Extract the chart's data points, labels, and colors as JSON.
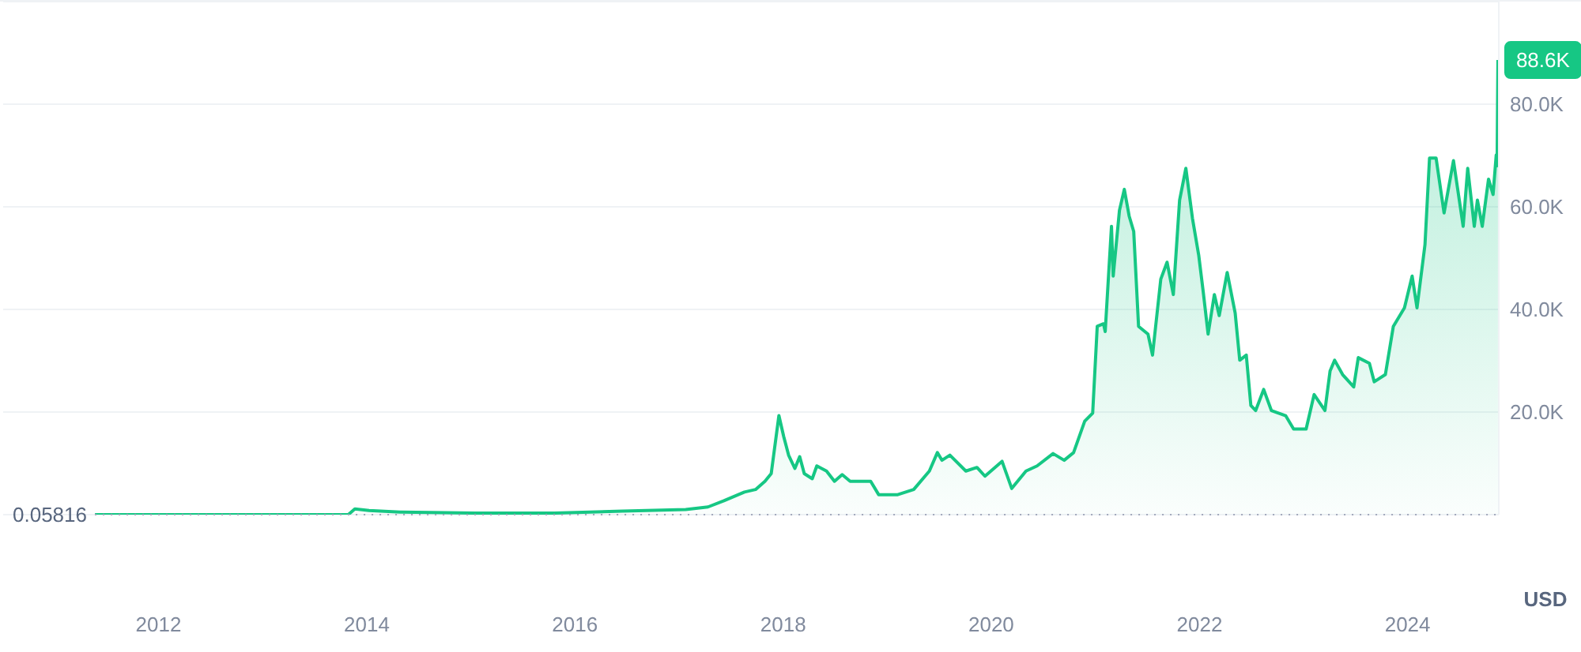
{
  "chart_data": {
    "type": "area",
    "ylabel": "USD",
    "x": [
      "2011-05-23",
      "2012-10-04",
      "2013-10-28",
      "2013-11-20",
      "2014-01-09",
      "2014-04-28",
      "2015-01-16",
      "2015-10-21",
      "2016-06-17",
      "2017-01-24",
      "2017-04-12",
      "2017-06-07",
      "2017-08-18",
      "2017-09-26",
      "2017-10-29",
      "2017-11-20",
      "2017-12-17",
      "2018-01-03",
      "2018-01-20",
      "2018-02-11",
      "2018-02-28",
      "2018-03-16",
      "2018-04-13",
      "2018-04-29",
      "2018-06-02",
      "2018-06-30",
      "2018-07-27",
      "2018-08-24",
      "2018-11-04",
      "2018-12-02",
      "2019-02-07",
      "2019-04-04",
      "2019-05-29",
      "2019-06-26",
      "2019-07-12",
      "2019-08-09",
      "2019-10-04",
      "2019-11-12",
      "2019-12-10",
      "2020-02-08",
      "2020-03-13",
      "2020-05-02",
      "2020-06-10",
      "2020-08-05",
      "2020-09-13",
      "2020-10-16",
      "2020-11-24",
      "2020-12-22",
      "2021-01-07",
      "2021-01-29",
      "2021-02-04",
      "2021-02-26",
      "2021-03-04",
      "2021-03-26",
      "2021-04-12",
      "2021-04-29",
      "2021-05-15",
      "2021-06-01",
      "2021-07-04",
      "2021-07-20",
      "2021-08-18",
      "2021-09-09",
      "2021-10-01",
      "2021-10-23",
      "2021-11-14",
      "2021-12-07",
      "2021-12-29",
      "2022-01-14",
      "2022-01-31",
      "2022-02-22",
      "2022-03-11",
      "2022-04-08",
      "2022-05-06",
      "2022-05-22",
      "2022-06-14",
      "2022-06-30",
      "2022-07-17",
      "2022-08-14",
      "2022-09-10",
      "2022-10-30",
      "2022-11-27",
      "2023-01-10",
      "2023-02-07",
      "2023-03-17",
      "2023-04-04",
      "2023-04-20",
      "2023-05-18",
      "2023-06-26",
      "2023-07-12",
      "2023-08-20",
      "2023-09-06",
      "2023-10-15",
      "2023-11-12",
      "2023-12-21",
      "2024-01-17",
      "2024-02-03",
      "2024-03-02",
      "2024-03-18",
      "2024-04-10",
      "2024-05-08",
      "2024-06-10",
      "2024-07-14",
      "2024-07-30",
      "2024-08-22",
      "2024-09-02",
      "2024-09-19",
      "2024-10-11",
      "2024-10-27",
      "2024-11-07",
      "2024-11-10",
      "2024-11-13"
    ],
    "series": [
      {
        "color": "#16c784",
        "values": [
          0,
          0,
          0,
          1100,
          800,
          500,
          300,
          300,
          700,
          1000,
          1500,
          2700,
          4400,
          4900,
          6500,
          8000,
          19300,
          15200,
          11600,
          9000,
          11300,
          8000,
          7000,
          9500,
          8500,
          6500,
          7800,
          6500,
          6500,
          3900,
          3900,
          4900,
          8500,
          12100,
          10600,
          11600,
          8500,
          9200,
          7500,
          10400,
          5100,
          8500,
          9500,
          11900,
          10600,
          12100,
          18200,
          19800,
          36700,
          37200,
          35700,
          56200,
          46500,
          59300,
          63400,
          58200,
          55200,
          36700,
          35200,
          31100,
          45900,
          49200,
          42900,
          61300,
          67500,
          57800,
          50600,
          43400,
          35200,
          42900,
          38800,
          47200,
          39300,
          30100,
          31100,
          21300,
          20300,
          24400,
          20300,
          19300,
          16700,
          16700,
          23400,
          20300,
          28000,
          30100,
          27300,
          24900,
          30600,
          29500,
          25900,
          27300,
          36700,
          40300,
          46500,
          40300,
          52600,
          69500,
          69500,
          58800,
          69000,
          56200,
          67500,
          56200,
          61300,
          56200,
          65400,
          62400,
          70100,
          68000,
          88600
        ]
      }
    ],
    "xlim": [
      "2010-07-05",
      "2024-11-16"
    ],
    "ylim": [
      0,
      100000
    ],
    "xticks": [
      "2012",
      "2014",
      "2016",
      "2018",
      "2020",
      "2022",
      "2024"
    ],
    "yticks": [
      {
        "value": 20000,
        "label": "20.0K"
      },
      {
        "value": 40000,
        "label": "40.0K"
      },
      {
        "value": 60000,
        "label": "60.0K"
      },
      {
        "value": 80000,
        "label": "80.0K"
      }
    ],
    "grid": "y",
    "ref_lines": [
      {
        "axis": "y",
        "value": 0.05816,
        "label": "0.05816",
        "color": "#a1a7bb",
        "line_style": "dotted"
      }
    ],
    "annotations": [
      {
        "text": "88.6K",
        "x": "2024-11-13",
        "y": 88600
      }
    ]
  }
}
